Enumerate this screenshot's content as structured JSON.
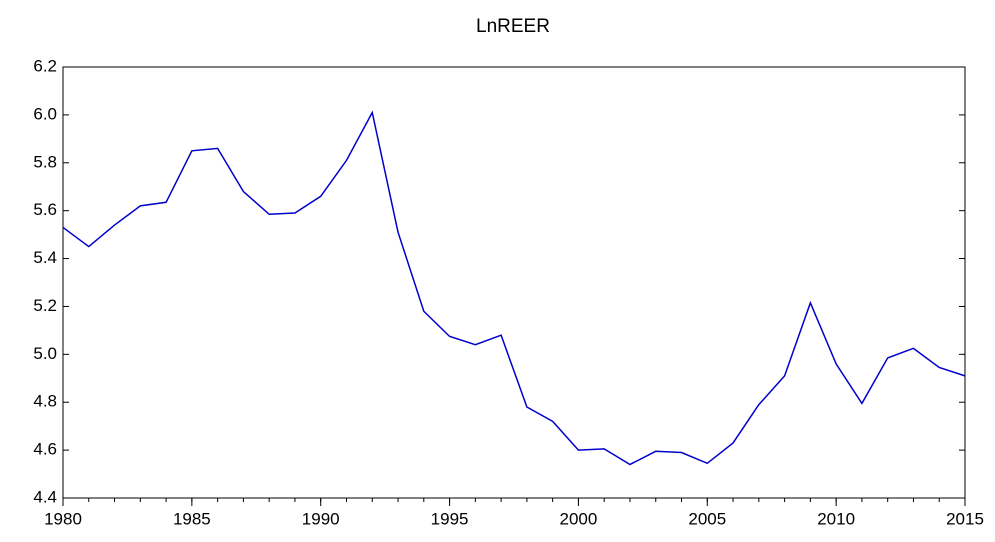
{
  "chart_data": {
    "type": "line",
    "title": "LnREER",
    "x": [
      1980,
      1981,
      1982,
      1983,
      1984,
      1985,
      1986,
      1987,
      1988,
      1989,
      1990,
      1991,
      1992,
      1993,
      1994,
      1995,
      1996,
      1997,
      1998,
      1999,
      2000,
      2001,
      2002,
      2003,
      2004,
      2005,
      2006,
      2007,
      2008,
      2009,
      2010,
      2011,
      2012,
      2013,
      2014,
      2015
    ],
    "values": [
      5.53,
      5.45,
      5.54,
      5.62,
      5.635,
      5.85,
      5.86,
      5.68,
      5.585,
      5.59,
      5.66,
      5.81,
      6.01,
      5.51,
      5.18,
      5.075,
      5.04,
      5.08,
      4.78,
      4.72,
      4.6,
      4.605,
      4.54,
      4.595,
      4.59,
      4.545,
      4.63,
      4.79,
      4.91,
      5.215,
      4.96,
      4.795,
      4.985,
      5.025,
      4.945,
      4.91
    ],
    "color": "#0000cc",
    "xlim": [
      1980,
      2015
    ],
    "xticks": [
      1980,
      1985,
      1990,
      1995,
      2000,
      2005,
      2010,
      2015
    ],
    "ylim": [
      4.4,
      6.2
    ],
    "yticks": [
      4.4,
      4.6,
      4.8,
      {
        "value": 5.0,
        "label": "5.0"
      },
      5.2,
      5.4,
      5.6,
      5.8,
      {
        "value": 6.0,
        "label": "6.0"
      },
      6.2
    ]
  }
}
